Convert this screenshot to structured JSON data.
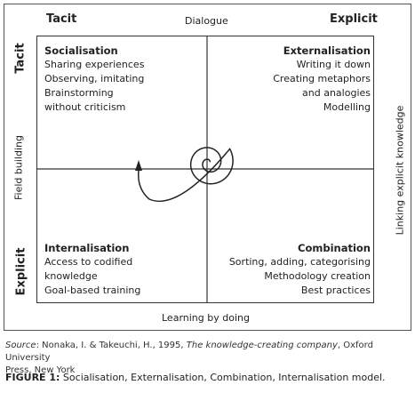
{
  "diagram": {
    "top_left_header": "Tacit",
    "top_right_header": "Explicit",
    "top_center_label": "Dialogue",
    "bottom_center_label": "Learning by doing",
    "left_top_label": "Tacit",
    "left_bottom_label": "Explicit",
    "left_middle_label": "Field building",
    "right_middle_label": "Linking explicit knowledge",
    "quadrants": {
      "socialisation": {
        "title": "Socialisation",
        "items": [
          "Sharing experiences",
          "Observing, imitating",
          "Brainstorming",
          "without criticism"
        ]
      },
      "externalisation": {
        "title": "Externalisation",
        "items": [
          "Writing it down",
          "Creating metaphors",
          "and analogies",
          "Modelling"
        ]
      },
      "internalisation": {
        "title": "Internalisation",
        "items": [
          "Access to codified",
          "knowledge",
          "Goal-based training"
        ]
      },
      "combination": {
        "title": "Combination",
        "items": [
          "Sorting, adding, categorising",
          "Methodology creation",
          "Best practices"
        ]
      }
    }
  },
  "caption": {
    "source_prefix": "Source",
    "source_authors": ": Nonaka, I. & Takeuchi, H., 1995, ",
    "source_title": "The knowledge-creating company",
    "source_rest": ", Oxford University",
    "source_line2": "Press, New York",
    "figure_label": "FIGURE 1:",
    "figure_text": " Socialisation, Externalisation, Combination, Internalisation model."
  }
}
